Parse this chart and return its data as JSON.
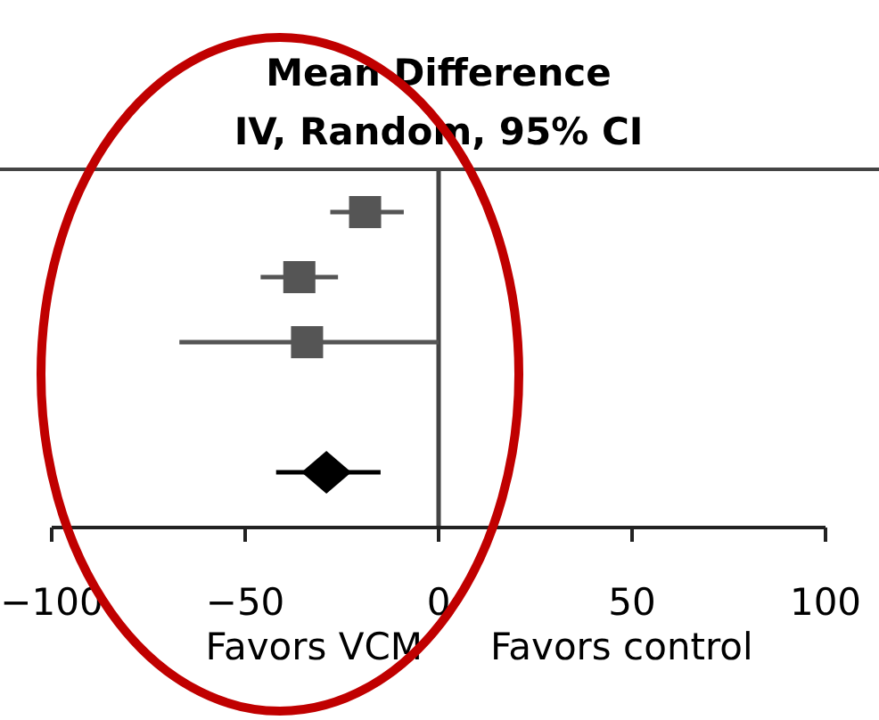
{
  "chart_data": {
    "type": "scatter",
    "title": "Mean Difference",
    "subtitle": "IV, Random, 95% CI",
    "orientation": "horizontal",
    "categories": [
      null,
      null,
      null,
      null,
      null
    ],
    "xlim": [
      -100,
      100
    ],
    "xticks": [
      -100,
      -50,
      0,
      50,
      100
    ],
    "tick_labels": "x",
    "ref_lines": [
      {
        "axis": "x",
        "value": 0
      }
    ],
    "annotations": [
      "Favors VCM",
      "Favors control"
    ],
    "series": [
      {
        "type": "scatter",
        "marker": "square",
        "color": "#555555",
        "values": [
          -19,
          -36,
          -34,
          null,
          null
        ],
        "errors": [
          [
            -28,
            -9
          ],
          [
            -46,
            -26
          ],
          [
            -67,
            0
          ],
          null,
          null
        ]
      },
      {
        "type": "scatter",
        "marker": "diamond",
        "color": "#000000",
        "values": [
          null,
          null,
          null,
          null,
          -29
        ],
        "errors": [
          null,
          null,
          null,
          null,
          [
            -42,
            -15
          ]
        ]
      }
    ]
  }
}
